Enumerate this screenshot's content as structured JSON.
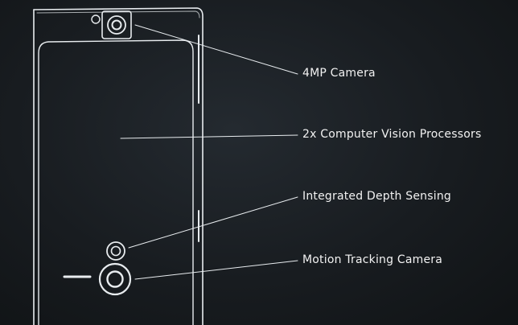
{
  "diagram": {
    "title": "",
    "stroke_color": "#e8ecef",
    "text_color": "#f2f2f2",
    "background_color": "#181c20",
    "callouts": [
      {
        "id": "camera",
        "label": "4MP Camera"
      },
      {
        "id": "vision-processors",
        "label": "2x Computer Vision Processors"
      },
      {
        "id": "depth-sensing",
        "label": "Integrated Depth Sensing"
      },
      {
        "id": "motion-camera",
        "label": "Motion Tracking Camera"
      }
    ]
  }
}
